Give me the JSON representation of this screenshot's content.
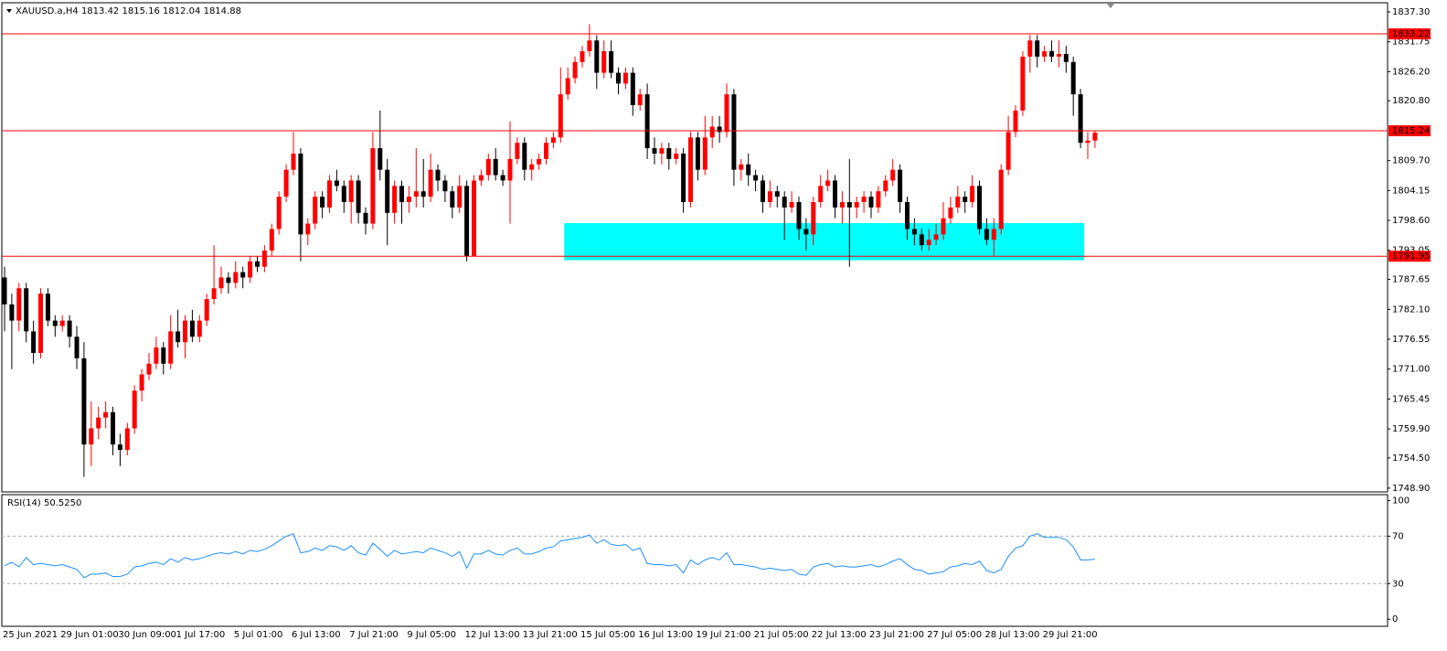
{
  "chart_data": [
    {
      "type": "candlestick",
      "title": "XAUUSD.a,H4",
      "x": [
        "25 Jun 2021",
        null,
        null,
        null,
        null,
        null,
        null,
        null,
        "29 Jun 01:00",
        null,
        null,
        null,
        null,
        null,
        null,
        null,
        "30 Jun 09:00",
        null,
        null,
        null,
        null,
        null,
        null,
        null,
        "1 Jul 17:00",
        null,
        null,
        null,
        null,
        null,
        null,
        null,
        "5 Jul 01:00",
        null,
        null,
        null,
        null,
        null,
        null,
        null,
        "6 Jul 13:00",
        null,
        null,
        null,
        null,
        null,
        null,
        null,
        "7 Jul 21:00",
        null,
        null,
        null,
        null,
        null,
        null,
        null,
        "9 Jul 05:00",
        null,
        null,
        null,
        null,
        null,
        null,
        null,
        "12 Jul 13:00",
        null,
        null,
        null,
        null,
        null,
        null,
        null,
        "13 Jul 21:00",
        null,
        null,
        null,
        null,
        null,
        null,
        null,
        "15 Jul 05:00",
        null,
        null,
        null,
        null,
        null,
        null,
        null,
        "16 Jul 13:00",
        null,
        null,
        null,
        null,
        null,
        null,
        null,
        "19 Jul 21:00",
        null,
        null,
        null,
        null,
        null,
        null,
        null,
        "21 Jul 05:00",
        null,
        null,
        null,
        null,
        null,
        null,
        null,
        "22 Jul 13:00",
        null,
        null,
        null,
        null,
        null,
        null,
        null,
        "23 Jul 21:00",
        null,
        null,
        null,
        null,
        null,
        null,
        null,
        "27 Jul 05:00",
        null,
        null,
        null,
        null,
        null,
        null,
        null,
        "28 Jul 13:00",
        null,
        null,
        null,
        null,
        null,
        null,
        null,
        "29 Jul 21:00",
        null,
        null,
        null,
        null,
        null,
        null,
        null
      ],
      "candles": [
        [
          1788,
          1790,
          1778,
          1783
        ],
        [
          1783,
          1785,
          1771,
          1780
        ],
        [
          1780,
          1787,
          1778,
          1786
        ],
        [
          1786,
          1787,
          1776,
          1778
        ],
        [
          1778,
          1780,
          1772,
          1774
        ],
        [
          1774,
          1786,
          1773,
          1785
        ],
        [
          1785,
          1786,
          1779,
          1780
        ],
        [
          1780,
          1781,
          1777,
          1779
        ],
        [
          1779,
          1781,
          1778,
          1780
        ],
        [
          1780,
          1781,
          1775,
          1777
        ],
        [
          1777,
          1779,
          1771,
          1773
        ],
        [
          1773,
          1776,
          1751,
          1757
        ],
        [
          1757,
          1765,
          1753,
          1760
        ],
        [
          1760,
          1764,
          1758,
          1762
        ],
        [
          1762,
          1765,
          1760,
          1763
        ],
        [
          1763,
          1764,
          1755,
          1757
        ],
        [
          1757,
          1759,
          1753,
          1756
        ],
        [
          1756,
          1761,
          1755,
          1760
        ],
        [
          1760,
          1768,
          1759,
          1767
        ],
        [
          1767,
          1771,
          1765,
          1770
        ],
        [
          1770,
          1774,
          1769,
          1772
        ],
        [
          1772,
          1777,
          1771,
          1775
        ],
        [
          1775,
          1776,
          1770,
          1772
        ],
        [
          1772,
          1781,
          1771,
          1778
        ],
        [
          1778,
          1782,
          1775,
          1776
        ],
        [
          1776,
          1781,
          1773,
          1780
        ],
        [
          1780,
          1782,
          1776,
          1777
        ],
        [
          1777,
          1781,
          1776,
          1780
        ],
        [
          1780,
          1785,
          1779,
          1784
        ],
        [
          1784,
          1794,
          1783,
          1786
        ],
        [
          1786,
          1790,
          1785,
          1788
        ],
        [
          1788,
          1789,
          1785,
          1787
        ],
        [
          1787,
          1791,
          1786,
          1789
        ],
        [
          1789,
          1790,
          1786,
          1788
        ],
        [
          1788,
          1792,
          1787,
          1791
        ],
        [
          1791,
          1792,
          1789,
          1790
        ],
        [
          1790,
          1794,
          1789,
          1793
        ],
        [
          1793,
          1798,
          1792,
          1797
        ],
        [
          1797,
          1804,
          1796,
          1803
        ],
        [
          1803,
          1809,
          1802,
          1808
        ],
        [
          1808,
          1815,
          1807,
          1811
        ],
        [
          1811,
          1812,
          1791,
          1796
        ],
        [
          1796,
          1799,
          1794,
          1798
        ],
        [
          1798,
          1804,
          1797,
          1803
        ],
        [
          1803,
          1804,
          1799,
          1801
        ],
        [
          1801,
          1807,
          1800,
          1806
        ],
        [
          1806,
          1808,
          1804,
          1805
        ],
        [
          1805,
          1806,
          1800,
          1802
        ],
        [
          1802,
          1807,
          1798,
          1806
        ],
        [
          1806,
          1807,
          1798,
          1800
        ],
        [
          1800,
          1801,
          1796,
          1798
        ],
        [
          1798,
          1815,
          1797,
          1812
        ],
        [
          1812,
          1819,
          1806,
          1808
        ],
        [
          1808,
          1810,
          1794,
          1800
        ],
        [
          1800,
          1806,
          1798,
          1805
        ],
        [
          1805,
          1806,
          1798,
          1802
        ],
        [
          1802,
          1805,
          1800,
          1803
        ],
        [
          1803,
          1812,
          1801,
          1804
        ],
        [
          1804,
          1810,
          1801,
          1803
        ],
        [
          1803,
          1811,
          1802,
          1808
        ],
        [
          1808,
          1809,
          1804,
          1806
        ],
        [
          1806,
          1807,
          1802,
          1804
        ],
        [
          1804,
          1805,
          1799,
          1801
        ],
        [
          1801,
          1807,
          1800,
          1805
        ],
        [
          1805,
          1806,
          1791,
          1792
        ],
        [
          1792,
          1807,
          1792,
          1806
        ],
        [
          1806,
          1808,
          1805,
          1807
        ],
        [
          1807,
          1811,
          1806,
          1810
        ],
        [
          1810,
          1812,
          1806,
          1807
        ],
        [
          1807,
          1808,
          1805,
          1806
        ],
        [
          1806,
          1817,
          1798,
          1810
        ],
        [
          1810,
          1814,
          1809,
          1813
        ],
        [
          1813,
          1814,
          1806,
          1808
        ],
        [
          1808,
          1810,
          1806,
          1809
        ],
        [
          1809,
          1811,
          1808,
          1810
        ],
        [
          1810,
          1814,
          1809,
          1813
        ],
        [
          1813,
          1815,
          1812,
          1814
        ],
        [
          1814,
          1827,
          1813,
          1822
        ],
        [
          1822,
          1827,
          1821,
          1825
        ],
        [
          1825,
          1829,
          1824,
          1828
        ],
        [
          1828,
          1831,
          1827,
          1830
        ],
        [
          1830,
          1835,
          1829,
          1832
        ],
        [
          1832,
          1833,
          1823,
          1826
        ],
        [
          1826,
          1832,
          1825,
          1830
        ],
        [
          1830,
          1832,
          1825,
          1826
        ],
        [
          1826,
          1827,
          1822,
          1824
        ],
        [
          1824,
          1827,
          1823,
          1826
        ],
        [
          1826,
          1827,
          1818,
          1820
        ],
        [
          1820,
          1823,
          1819,
          1822
        ],
        [
          1822,
          1824,
          1810,
          1812
        ],
        [
          1812,
          1814,
          1809,
          1811
        ],
        [
          1811,
          1813,
          1809,
          1812
        ],
        [
          1812,
          1813,
          1808,
          1810
        ],
        [
          1810,
          1812,
          1809,
          1811
        ],
        [
          1811,
          1812,
          1800,
          1802
        ],
        [
          1802,
          1815,
          1801,
          1814
        ],
        [
          1814,
          1815,
          1806,
          1808
        ],
        [
          1808,
          1818,
          1807,
          1814
        ],
        [
          1814,
          1818,
          1812,
          1816
        ],
        [
          1816,
          1818,
          1813,
          1815
        ],
        [
          1815,
          1824,
          1814,
          1822
        ],
        [
          1822,
          1823,
          1805,
          1808
        ],
        [
          1808,
          1810,
          1806,
          1809
        ],
        [
          1809,
          1811,
          1805,
          1807
        ],
        [
          1807,
          1808,
          1804,
          1806
        ],
        [
          1806,
          1807,
          1800,
          1802
        ],
        [
          1802,
          1806,
          1801,
          1804
        ],
        [
          1804,
          1805,
          1801,
          1803
        ],
        [
          1803,
          1804,
          1795,
          1801
        ],
        [
          1801,
          1804,
          1800,
          1802
        ],
        [
          1802,
          1803,
          1795,
          1797
        ],
        [
          1797,
          1799,
          1793,
          1796
        ],
        [
          1796,
          1803,
          1794,
          1802
        ],
        [
          1802,
          1807,
          1801,
          1805
        ],
        [
          1805,
          1808,
          1804,
          1806
        ],
        [
          1806,
          1807,
          1799,
          1801
        ],
        [
          1801,
          1804,
          1798,
          1802
        ],
        [
          1802,
          1810,
          1790,
          1801
        ],
        [
          1801,
          1803,
          1799,
          1802
        ],
        [
          1802,
          1804,
          1800,
          1803
        ],
        [
          1803,
          1804,
          1799,
          1801
        ],
        [
          1801,
          1805,
          1800,
          1804
        ],
        [
          1804,
          1807,
          1803,
          1806
        ],
        [
          1806,
          1810,
          1805,
          1808
        ],
        [
          1808,
          1809,
          1800,
          1802
        ],
        [
          1802,
          1803,
          1795,
          1797
        ],
        [
          1797,
          1799,
          1794,
          1796
        ],
        [
          1796,
          1797,
          1793,
          1794
        ],
        [
          1794,
          1797,
          1793,
          1795
        ],
        [
          1795,
          1798,
          1794,
          1796
        ],
        [
          1796,
          1802,
          1795,
          1799
        ],
        [
          1799,
          1803,
          1798,
          1801
        ],
        [
          1801,
          1805,
          1800,
          1803
        ],
        [
          1803,
          1804,
          1800,
          1802
        ],
        [
          1802,
          1807,
          1801,
          1805
        ],
        [
          1805,
          1806,
          1796,
          1797
        ],
        [
          1797,
          1799,
          1794,
          1795
        ],
        [
          1795,
          1799,
          1792,
          1797
        ],
        [
          1797,
          1809,
          1796,
          1808
        ],
        [
          1808,
          1818,
          1807,
          1815
        ],
        [
          1815,
          1820,
          1814,
          1819
        ],
        [
          1819,
          1830,
          1818,
          1829
        ],
        [
          1829,
          1833,
          1826,
          1832
        ],
        [
          1832,
          1833,
          1827,
          1829
        ],
        [
          1829,
          1831,
          1828,
          1830
        ],
        [
          1830,
          1832,
          1828,
          1829
        ],
        [
          1829,
          1832,
          1827,
          1829.5
        ],
        [
          1829.5,
          1831,
          1826,
          1828
        ],
        [
          1828,
          1829,
          1818,
          1822
        ],
        [
          1822,
          1823,
          1812,
          1813
        ],
        [
          1813,
          1815,
          1810,
          1813.42
        ],
        [
          1813.42,
          1815.16,
          1812.04,
          1814.88
        ]
      ],
      "up_color": "#ff0000",
      "down_color": "#000000",
      "ylim": [
        1748.2,
        1839.0
      ],
      "yticks": [
        {
          "value": 1837.3,
          "label": "1837.30"
        },
        1831.75,
        {
          "value": 1826.2,
          "label": "1826.20"
        },
        {
          "value": 1820.8,
          "label": "1820.80"
        },
        {
          "value": 1809.7,
          "label": "1809.70"
        },
        1804.15,
        {
          "value": 1798.6,
          "label": "1798.60"
        },
        1793.05,
        1787.65,
        {
          "value": 1782.1,
          "label": "1782.10"
        },
        1776.55,
        {
          "value": 1771.0,
          "label": "1771.00"
        },
        1765.45,
        {
          "value": 1759.9,
          "label": "1759.90"
        },
        {
          "value": 1754.5,
          "label": "1754.50"
        },
        {
          "value": 1748.9,
          "label": "1748.90"
        }
      ],
      "levels": [
        1833.22,
        1815.24,
        1791.95
      ],
      "level_color": "#ff0000",
      "zone": {
        "x": [
          77.5,
          149.5
        ],
        "y": [
          1791.2,
          1798.1
        ],
        "color": "#00ffff"
      }
    },
    {
      "type": "line",
      "title": "RSI(14) 50.5250",
      "values": [
        45,
        48,
        44,
        52,
        46,
        47,
        46,
        45,
        46,
        44,
        42,
        35,
        38,
        38,
        39,
        36,
        36,
        38,
        44,
        45,
        47,
        48,
        46,
        51,
        48,
        52,
        50,
        51,
        53,
        55,
        56,
        55,
        57,
        55,
        58,
        57,
        59,
        62,
        66,
        70,
        72,
        56,
        57,
        60,
        58,
        62,
        61,
        58,
        62,
        56,
        54,
        64,
        59,
        53,
        58,
        55,
        56,
        57,
        56,
        60,
        58,
        56,
        53,
        57,
        43,
        55,
        55,
        58,
        55,
        54,
        58,
        60,
        55,
        55,
        57,
        60,
        61,
        66,
        67,
        68,
        69,
        71,
        64,
        67,
        63,
        62,
        63,
        58,
        60,
        47,
        46,
        46,
        45,
        46,
        39,
        50,
        46,
        50,
        52,
        50,
        56,
        46,
        46,
        45,
        44,
        42,
        43,
        42,
        41,
        42,
        38,
        37,
        44,
        46,
        47,
        44,
        45,
        44,
        44,
        45,
        46,
        44,
        46,
        49,
        51,
        46,
        42,
        41,
        38,
        39,
        40,
        44,
        45,
        47,
        46,
        49,
        41,
        39,
        42,
        53,
        60,
        62,
        70,
        72,
        69,
        69,
        69,
        67,
        61,
        50,
        50,
        50.525
      ],
      "color": "#1e90ff",
      "ylim": [
        -6,
        105
      ],
      "yticks": [
        100,
        70,
        30,
        0
      ],
      "levels": [
        70,
        30
      ]
    }
  ]
}
